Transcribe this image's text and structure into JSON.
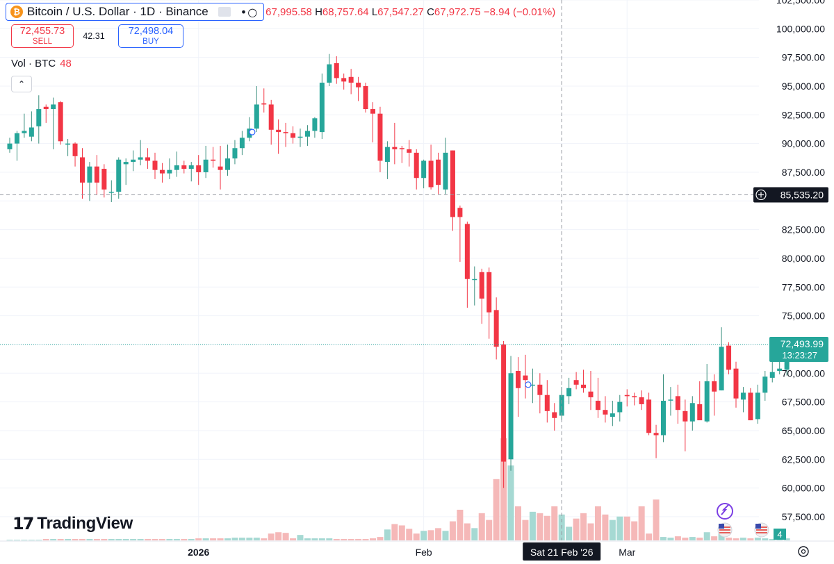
{
  "header": {
    "symbol_title": "Bitcoin / U.S. Dollar · 1D · Binance",
    "icon_letter": "₿",
    "more_glyph": "•○",
    "ohlc_open_value": "67,995.58",
    "ohlc_high_label": "H",
    "ohlc_high_value": "68,757.64",
    "ohlc_low_label": "L",
    "ohlc_low_value": "67,547.27",
    "ohlc_close_label": "C",
    "ohlc_close_value": "67,972.75",
    "ohlc_change": "−8.94 (−0.01%)"
  },
  "trade": {
    "sell_price": "72,455.73",
    "sell_label": "SELL",
    "spread": "42.31",
    "buy_price": "72,498.04",
    "buy_label": "BUY"
  },
  "volume_legend": {
    "label": "Vol · BTC",
    "value": "48"
  },
  "collapse_glyph": "⌃",
  "logo": {
    "mark": "17",
    "text": "TradingView"
  },
  "colors": {
    "up": "#26a69a",
    "down": "#f23645",
    "up_wick": "#3a8f7e",
    "accent": "#2962ff"
  },
  "chart_data": {
    "type": "candlestick",
    "symbol": "BTCUSD",
    "exchange": "Binance",
    "interval": "1D",
    "ylim": [
      55500,
      102500
    ],
    "price_ticks": [
      57500,
      60000,
      62500,
      65000,
      67500,
      70000,
      72500,
      75000,
      77500,
      80000,
      82500,
      85000,
      87500,
      90000,
      92500,
      95000,
      97500,
      100000,
      102500
    ],
    "price_tick_labels": [
      "57,500.00",
      "60,000.00",
      "62,500.00",
      "65,000.00",
      "67,500.00",
      "70,000.00",
      "",
      "75,000.00",
      "77,500.00",
      "80,000.00",
      "82,500.00",
      "",
      "87,500.00",
      "90,000.00",
      "92,500.00",
      "95,000.00",
      "97,500.00",
      "100,000.00",
      "102,500.00"
    ],
    "x_labels": [
      {
        "index": 26,
        "label": "2026"
      },
      {
        "index": 57,
        "label": "Feb"
      },
      {
        "index": 85,
        "label": "Mar"
      }
    ],
    "current_price": {
      "value": 72493.99,
      "label": "72,493.99",
      "countdown": "13:23:27"
    },
    "crosshair": {
      "index": 76,
      "price": 85535.2,
      "price_label": "85,535.20",
      "date_label": "Sat 21 Feb '26"
    },
    "overlay_badges": {
      "volume_badge": "4"
    },
    "candles": [
      [
        89500,
        90500,
        89200,
        90000,
        1
      ],
      [
        90000,
        91100,
        88500,
        90900,
        1
      ],
      [
        90900,
        92600,
        90500,
        91100,
        1
      ],
      [
        90600,
        92800,
        90200,
        91400,
        1
      ],
      [
        91500,
        94200,
        90000,
        93000,
        1
      ],
      [
        93200,
        93400,
        91800,
        93000,
        2
      ],
      [
        93000,
        94000,
        89500,
        93400,
        2
      ],
      [
        93600,
        93700,
        89900,
        90200,
        2
      ],
      [
        89900,
        90400,
        88900,
        90000,
        2
      ],
      [
        90000,
        90100,
        88000,
        88900,
        2
      ],
      [
        88800,
        89600,
        85200,
        86600,
        2
      ],
      [
        86600,
        88400,
        85000,
        88000,
        2
      ],
      [
        88000,
        89000,
        85500,
        86600,
        2
      ],
      [
        87800,
        88200,
        85300,
        86000,
        2
      ],
      [
        85800,
        86800,
        84900,
        85800,
        2
      ],
      [
        85800,
        88800,
        85200,
        88600,
        2
      ],
      [
        88200,
        88700,
        86400,
        88400,
        2
      ],
      [
        88400,
        89400,
        87600,
        88600,
        2
      ],
      [
        88600,
        90300,
        88100,
        88800,
        2
      ],
      [
        88800,
        89600,
        87800,
        88500,
        2
      ],
      [
        88500,
        89200,
        86900,
        87700,
        2
      ],
      [
        87700,
        88300,
        86600,
        87400,
        2
      ],
      [
        87400,
        88700,
        86900,
        87700,
        2
      ],
      [
        87700,
        89300,
        87100,
        88100,
        2
      ],
      [
        88100,
        88500,
        87400,
        87800,
        2
      ],
      [
        87800,
        88400,
        86700,
        88100,
        2
      ],
      [
        88100,
        89000,
        86400,
        87500,
        3
      ],
      [
        87500,
        89800,
        87000,
        88600,
        3
      ],
      [
        88600,
        89700,
        87900,
        88500,
        3
      ],
      [
        88000,
        89800,
        86000,
        87700,
        3
      ],
      [
        87700,
        89900,
        87200,
        88700,
        3
      ],
      [
        88700,
        90300,
        88200,
        89600,
        4
      ],
      [
        89600,
        91100,
        89000,
        90500,
        4
      ],
      [
        90500,
        92300,
        90200,
        91300,
        4
      ],
      [
        91300,
        95000,
        91000,
        93400,
        4
      ],
      [
        93500,
        94800,
        92700,
        93400,
        3
      ],
      [
        93400,
        93800,
        89900,
        91200,
        10
      ],
      [
        91200,
        92100,
        89100,
        91000,
        12
      ],
      [
        91000,
        91800,
        89700,
        90900,
        11
      ],
      [
        90900,
        91500,
        90000,
        90500,
        3
      ],
      [
        90500,
        91300,
        89700,
        90600,
        8
      ],
      [
        90600,
        91600,
        89800,
        91100,
        3
      ],
      [
        91100,
        92300,
        90500,
        92200,
        3
      ],
      [
        91000,
        96100,
        90400,
        95300,
        3
      ],
      [
        95300,
        97800,
        95000,
        96900,
        3
      ],
      [
        97000,
        97600,
        95200,
        95700,
        2
      ],
      [
        95700,
        96100,
        94700,
        95400,
        2
      ],
      [
        95800,
        96500,
        94300,
        95300,
        2
      ],
      [
        95300,
        95800,
        93700,
        94900,
        2
      ],
      [
        95000,
        95300,
        92700,
        93000,
        2
      ],
      [
        93000,
        93600,
        90100,
        92600,
        3
      ],
      [
        92600,
        93200,
        87500,
        88500,
        5
      ],
      [
        88400,
        90200,
        86900,
        89700,
        16
      ],
      [
        89700,
        91800,
        88200,
        89500,
        24
      ],
      [
        89600,
        89800,
        88300,
        89500,
        22
      ],
      [
        89500,
        90300,
        88000,
        89200,
        17
      ],
      [
        89200,
        89500,
        86000,
        87000,
        10
      ],
      [
        87000,
        88600,
        86100,
        88500,
        14
      ],
      [
        88500,
        89900,
        86000,
        86200,
        15
      ],
      [
        88600,
        89200,
        85600,
        86400,
        18
      ],
      [
        86000,
        90500,
        85600,
        89200,
        14
      ],
      [
        89400,
        89400,
        82400,
        83600,
        28
      ],
      [
        84400,
        84600,
        79700,
        83600,
        45
      ],
      [
        83000,
        83200,
        75700,
        78200,
        25
      ],
      [
        78200,
        79300,
        75900,
        78200,
        18
      ],
      [
        78800,
        79100,
        74300,
        76500,
        40
      ],
      [
        78800,
        79200,
        73000,
        75300,
        30
      ],
      [
        75500,
        76600,
        71200,
        72300,
        90
      ],
      [
        72500,
        72800,
        60000,
        62300,
        150
      ],
      [
        62500,
        71500,
        61500,
        70000,
        110
      ],
      [
        70200,
        71400,
        66200,
        68700,
        50
      ],
      [
        69800,
        71600,
        67800,
        69400,
        30
      ],
      [
        69000,
        70400,
        67400,
        69000,
        42
      ],
      [
        69000,
        70000,
        66500,
        68100,
        40
      ],
      [
        68100,
        69400,
        65700,
        66700,
        36
      ],
      [
        66600,
        67400,
        65000,
        66100,
        50
      ],
      [
        66300,
        68800,
        65900,
        68100,
        38
      ],
      [
        68000,
        69600,
        67300,
        68700,
        20
      ],
      [
        69400,
        70100,
        68600,
        69000,
        32
      ],
      [
        69000,
        70300,
        68300,
        68700,
        40
      ],
      [
        68400,
        70200,
        66800,
        67900,
        25
      ],
      [
        67600,
        69600,
        66100,
        66800,
        50
      ],
      [
        66800,
        68000,
        65700,
        66400,
        38
      ],
      [
        66200,
        67600,
        65400,
        66500,
        30
      ],
      [
        66600,
        68100,
        65800,
        67500,
        35
      ],
      [
        68100,
        68600,
        67100,
        68000,
        35
      ],
      [
        68000,
        68300,
        67200,
        67900,
        28
      ],
      [
        67900,
        68500,
        66800,
        67300,
        50
      ],
      [
        67700,
        68300,
        64600,
        64800,
        10
      ],
      [
        64800,
        65500,
        62600,
        64600,
        60
      ],
      [
        64600,
        69900,
        64000,
        67600,
        5
      ],
      [
        67700,
        68800,
        66300,
        67700,
        4
      ],
      [
        68000,
        69000,
        65600,
        66800,
        6
      ],
      [
        66700,
        67700,
        63200,
        65800,
        4
      ],
      [
        65800,
        68000,
        65000,
        67400,
        5
      ],
      [
        67300,
        69300,
        66000,
        65900,
        4
      ],
      [
        65800,
        70800,
        65700,
        69300,
        12
      ],
      [
        69300,
        69900,
        66300,
        68400,
        6
      ],
      [
        68500,
        74000,
        68500,
        72300,
        13
      ],
      [
        72400,
        72700,
        69900,
        70300,
        4
      ],
      [
        70400,
        71000,
        67000,
        67800,
        3
      ],
      [
        67700,
        68800,
        66600,
        68300,
        4
      ],
      [
        68300,
        68700,
        65900,
        65900,
        3
      ],
      [
        66000,
        69000,
        65600,
        68300,
        4
      ],
      [
        68300,
        70200,
        67600,
        69700,
        3
      ],
      [
        69600,
        71300,
        69200,
        70100,
        2
      ],
      [
        70200,
        71500,
        69900,
        70400,
        3
      ],
      [
        70300,
        72700,
        69800,
        72494,
        3
      ]
    ]
  }
}
